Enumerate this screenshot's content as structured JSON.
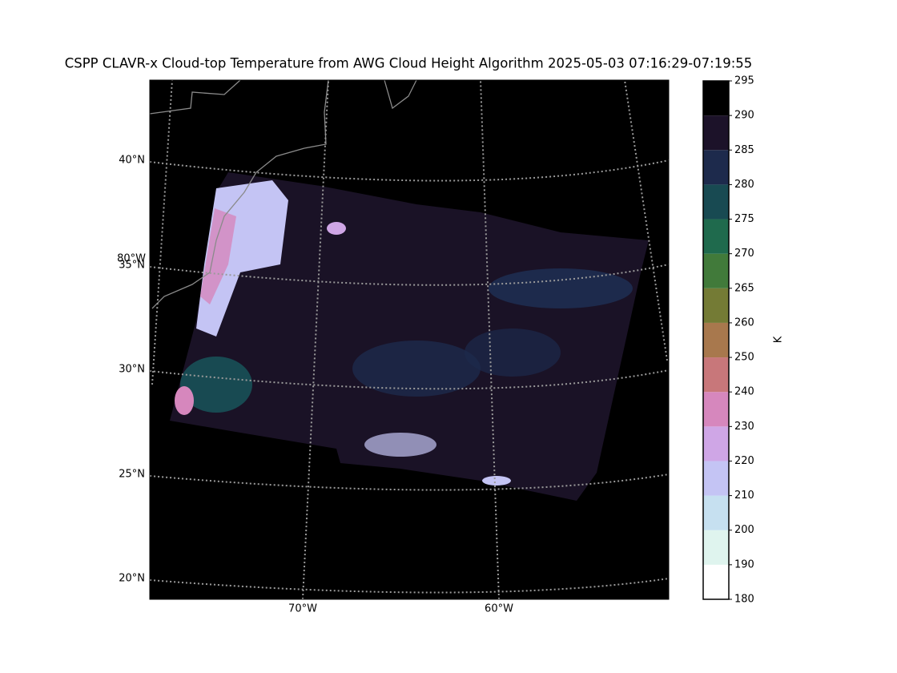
{
  "map": {
    "title": "CSPP CLAVR-x Cloud-top Temperature from AWG Cloud Height Algorithm 2025-05-03 07:16:29-07:19:55",
    "lat_labels": [
      "40°N",
      "35°N",
      "30°N",
      "25°N",
      "20°N"
    ],
    "lon_labels": [
      "80°W",
      "70°W",
      "60°W"
    ],
    "colorbar": {
      "label": "K",
      "ticks": [
        180,
        190,
        200,
        210,
        220,
        230,
        240,
        250,
        260,
        265,
        270,
        275,
        280,
        285,
        290,
        295
      ],
      "colors": [
        "#ffffff",
        "#dff4ee",
        "#c6e0f0",
        "#c4c4f4",
        "#cfa6e6",
        "#d687bd",
        "#c8777a",
        "#a8784d",
        "#747b35",
        "#417a3a",
        "#1f6a4d",
        "#184a52",
        "#1d2a4c",
        "#1c1229",
        "#000000"
      ]
    }
  }
}
